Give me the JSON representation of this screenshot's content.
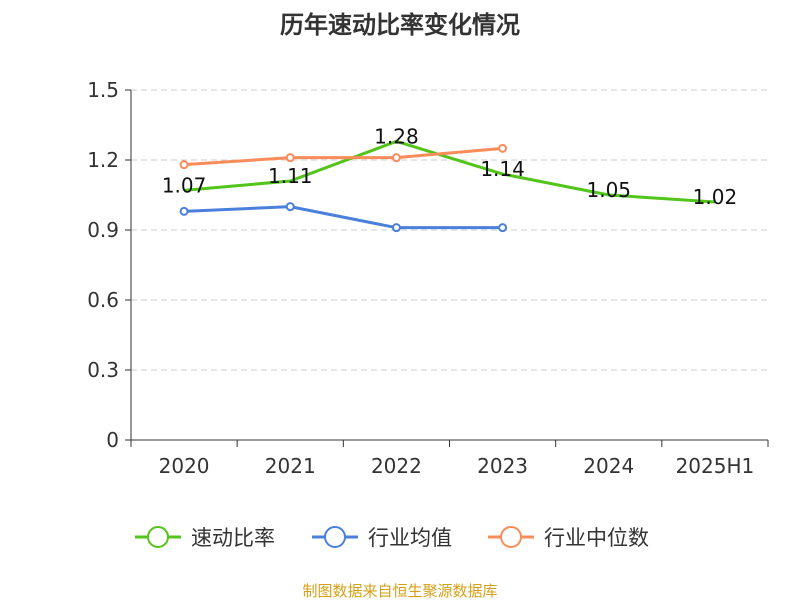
{
  "chart_data": {
    "type": "line",
    "title": "历年速动比率变化情况",
    "categories": [
      "2020",
      "2021",
      "2022",
      "2023",
      "2024",
      "2025H1"
    ],
    "ylim": [
      0,
      1.5
    ],
    "yticks": [
      "0",
      "0.3",
      "0.6",
      "0.9",
      "1.2",
      "1.5"
    ],
    "grid": true,
    "legend_position": "bottom",
    "series": [
      {
        "name": "速动比率",
        "color": "#52c41a",
        "values": [
          1.07,
          1.11,
          1.28,
          1.14,
          1.05,
          1.02
        ],
        "labels": [
          "1.07",
          "1.11",
          "1.28",
          "1.14",
          "1.05",
          "1.02"
        ],
        "markers": false
      },
      {
        "name": "行业均值",
        "color": "#4a7fdc",
        "values": [
          0.98,
          1.0,
          0.91,
          0.91,
          null,
          null
        ],
        "markers": true
      },
      {
        "name": "行业中位数",
        "color": "#fa8c5a",
        "values": [
          1.18,
          1.21,
          1.21,
          1.25,
          null,
          null
        ],
        "markers": true
      }
    ],
    "source": "制图数据来自恒生聚源数据库",
    "source_color": "#d4a017"
  }
}
